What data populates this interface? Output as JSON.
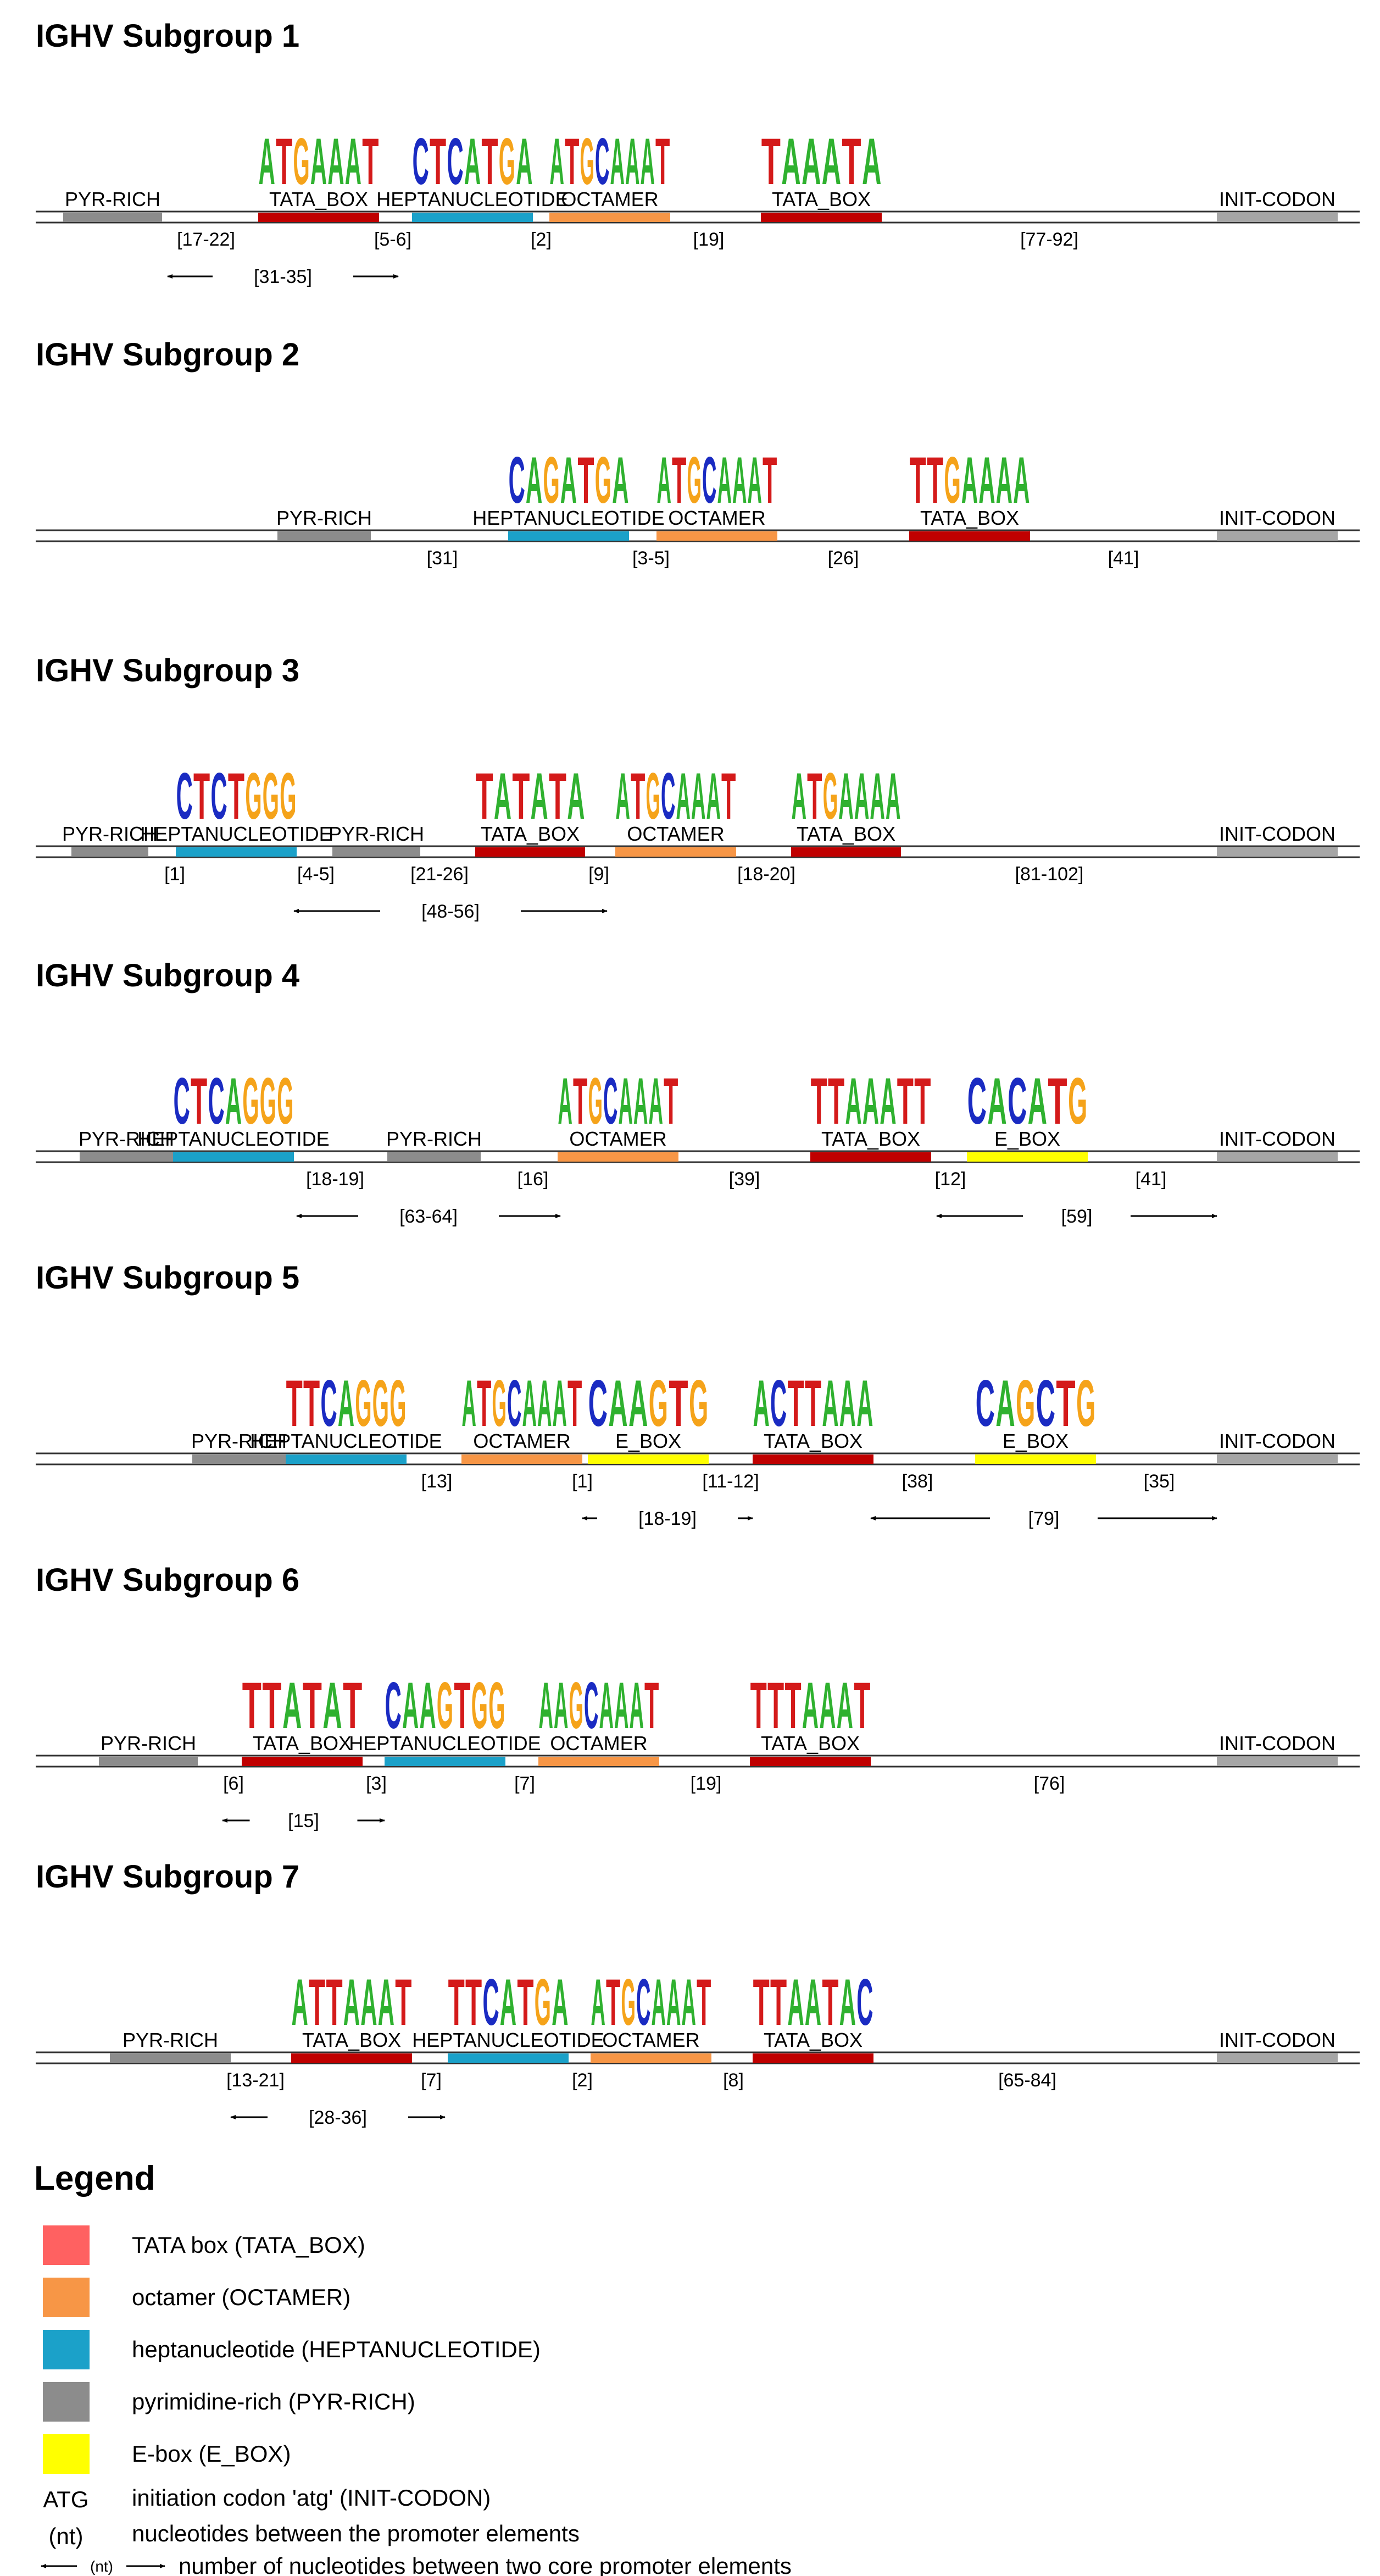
{
  "colors": {
    "TATA_BOX": "#c00000",
    "OCTAMER": "#f79646",
    "HEPTANUCLEOTIDE": "#1ba1c9",
    "PYR_RICH": "#8c8c8c",
    "E_BOX": "#ffff00",
    "INIT_CODON": "#a6a6a6",
    "nucleotide": {
      "A": "#2fb12f",
      "C": "#1a2bc2",
      "G": "#f5a31a",
      "T": "#d41a1a"
    },
    "legend_swatch_tata": "#ff6161",
    "init_codon_text": "#e02020"
  },
  "subgroups": [
    {
      "title": "IGHV Subgroup 1",
      "elements": [
        {
          "type": "PYR-RICH",
          "label": "PYR-RICH",
          "start": 115,
          "end": 295
        },
        {
          "type": "TATA_BOX",
          "label": "TATA_BOX",
          "start": 470,
          "end": 690,
          "logo": "ATGAAAT"
        },
        {
          "type": "HEPTANUCLEOTIDE",
          "label": "HEPTANUCLEOTIDE",
          "start": 750,
          "end": 970,
          "logo": "CTCATGA"
        },
        {
          "type": "OCTAMER",
          "label": "OCTAMER",
          "start": 1000,
          "end": 1220,
          "logo": "ATGCAAAT"
        },
        {
          "type": "TATA_BOX",
          "label": "TATA_BOX",
          "start": 1385,
          "end": 1605,
          "logo": "TAAATA"
        },
        {
          "type": "INIT-CODON",
          "label": "INIT-CODON",
          "start": 2215,
          "end": 2435
        }
      ],
      "gaps": [
        {
          "label": "[17-22]",
          "pos": 375
        },
        {
          "label": "[5-6]",
          "pos": 715
        },
        {
          "label": "[2]",
          "pos": 985
        },
        {
          "label": "[19]",
          "pos": 1290
        },
        {
          "label": "[77-92]",
          "pos": 1910
        }
      ],
      "spans": [
        {
          "label": "[31-35]",
          "from": 305,
          "to": 725
        }
      ]
    },
    {
      "title": "IGHV Subgroup 2",
      "elements": [
        {
          "type": "PYR-RICH",
          "label": "PYR-RICH",
          "start": 505,
          "end": 675
        },
        {
          "type": "HEPTANUCLEOTIDE",
          "label": "HEPTANUCLEOTIDE",
          "start": 925,
          "end": 1145,
          "logo": "CAGATGA"
        },
        {
          "type": "OCTAMER",
          "label": "OCTAMER",
          "start": 1195,
          "end": 1415,
          "logo": "ATGCAAAT"
        },
        {
          "type": "TATA_BOX",
          "label": "TATA_BOX",
          "start": 1655,
          "end": 1875,
          "logo": "TTGAAAA"
        },
        {
          "type": "INIT-CODON",
          "label": "INIT-CODON",
          "start": 2215,
          "end": 2435
        }
      ],
      "gaps": [
        {
          "label": "[31]",
          "pos": 805
        },
        {
          "label": "[3-5]",
          "pos": 1185
        },
        {
          "label": "[26]",
          "pos": 1535
        },
        {
          "label": "[41]",
          "pos": 2045
        }
      ],
      "spans": []
    },
    {
      "title": "IGHV Subgroup 3",
      "elements": [
        {
          "type": "PYR-RICH",
          "label": "PYR-RICH",
          "start": 130,
          "end": 270
        },
        {
          "type": "HEPTANUCLEOTIDE",
          "label": "HEPTANUCLEOTIDE",
          "start": 320,
          "end": 540,
          "logo": "CTCTGGG"
        },
        {
          "type": "PYR-RICH",
          "label": "PYR-RICH",
          "start": 605,
          "end": 765
        },
        {
          "type": "TATA_BOX",
          "label": "TATA_BOX",
          "start": 865,
          "end": 1065,
          "logo": "TATATA"
        },
        {
          "type": "OCTAMER",
          "label": "OCTAMER",
          "start": 1120,
          "end": 1340,
          "logo": "ATGCAAAT"
        },
        {
          "type": "TATA_BOX",
          "label": "TATA_BOX",
          "start": 1440,
          "end": 1640,
          "logo": "ATGAAAA"
        },
        {
          "type": "INIT-CODON",
          "label": "INIT-CODON",
          "start": 2215,
          "end": 2435
        }
      ],
      "gaps": [
        {
          "label": "[1]",
          "pos": 318
        },
        {
          "label": "[4-5]",
          "pos": 575
        },
        {
          "label": "[21-26]",
          "pos": 800
        },
        {
          "label": "[9]",
          "pos": 1090
        },
        {
          "label": "[18-20]",
          "pos": 1395
        },
        {
          "label": "[81-102]",
          "pos": 1910
        }
      ],
      "spans": [
        {
          "label": "[48-56]",
          "from": 535,
          "to": 1105
        }
      ]
    },
    {
      "title": "IGHV Subgroup 4",
      "elements": [
        {
          "type": "PYR-RICH",
          "label": "PYR-RICH",
          "start": 145,
          "end": 315
        },
        {
          "type": "HEPTANUCLEOTIDE",
          "label": "HEPTANUCLEOTIDE",
          "start": 315,
          "end": 535,
          "logo": "CTCAGGG"
        },
        {
          "type": "PYR-RICH",
          "label": "PYR-RICH",
          "start": 705,
          "end": 875
        },
        {
          "type": "OCTAMER",
          "label": "OCTAMER",
          "start": 1015,
          "end": 1235,
          "logo": "ATGCAAAT"
        },
        {
          "type": "TATA_BOX",
          "label": "TATA_BOX",
          "start": 1475,
          "end": 1695,
          "logo": "TTAAATT"
        },
        {
          "type": "E_BOX",
          "label": "E_BOX",
          "start": 1760,
          "end": 1980,
          "logo": "CACATG"
        },
        {
          "type": "INIT-CODON",
          "label": "INIT-CODON",
          "start": 2215,
          "end": 2435
        }
      ],
      "gaps": [
        {
          "label": "[18-19]",
          "pos": 610
        },
        {
          "label": "[16]",
          "pos": 970
        },
        {
          "label": "[39]",
          "pos": 1355
        },
        {
          "label": "[12]",
          "pos": 1730
        },
        {
          "label": "[41]",
          "pos": 2095
        }
      ],
      "spans": [
        {
          "label": "[63-64]",
          "from": 540,
          "to": 1020
        },
        {
          "label": "[59]",
          "from": 1705,
          "to": 2215
        }
      ]
    },
    {
      "title": "IGHV Subgroup 5",
      "elements": [
        {
          "type": "PYR-RICH",
          "label": "PYR-RICH",
          "start": 350,
          "end": 520
        },
        {
          "type": "HEPTANUCLEOTIDE",
          "label": "HEPTANUCLEOTIDE",
          "start": 520,
          "end": 740,
          "logo": "TTCAGGG"
        },
        {
          "type": "OCTAMER",
          "label": "OCTAMER",
          "start": 840,
          "end": 1060,
          "logo": "ATGCAAAT"
        },
        {
          "type": "E_BOX",
          "label": "E_BOX",
          "start": 1070,
          "end": 1290,
          "logo": "CAAGTG"
        },
        {
          "type": "TATA_BOX",
          "label": "TATA_BOX",
          "start": 1370,
          "end": 1590,
          "logo": "ACTTAAA"
        },
        {
          "type": "E_BOX",
          "label": "E_BOX",
          "start": 1775,
          "end": 1995,
          "logo": "CAGCTG"
        },
        {
          "type": "INIT-CODON",
          "label": "INIT-CODON",
          "start": 2215,
          "end": 2435
        }
      ],
      "gaps": [
        {
          "label": "[13]",
          "pos": 795
        },
        {
          "label": "[1]",
          "pos": 1060
        },
        {
          "label": "[11-12]",
          "pos": 1330
        },
        {
          "label": "[38]",
          "pos": 1670
        },
        {
          "label": "[35]",
          "pos": 2110
        }
      ],
      "spans": [
        {
          "label": "[18-19]",
          "from": 1060,
          "to": 1370
        },
        {
          "label": "[79]",
          "from": 1585,
          "to": 2215
        }
      ]
    },
    {
      "title": "IGHV Subgroup 6",
      "elements": [
        {
          "type": "PYR-RICH",
          "label": "PYR-RICH",
          "start": 180,
          "end": 360
        },
        {
          "type": "TATA_BOX",
          "label": "TATA_BOX",
          "start": 440,
          "end": 660,
          "logo": "TTATAT"
        },
        {
          "type": "HEPTANUCLEOTIDE",
          "label": "HEPTANUCLEOTIDE",
          "start": 700,
          "end": 920,
          "logo": "CAAGTGG"
        },
        {
          "type": "OCTAMER",
          "label": "OCTAMER",
          "start": 980,
          "end": 1200,
          "logo": "AAGCAAAT"
        },
        {
          "type": "TATA_BOX",
          "label": "TATA_BOX",
          "start": 1365,
          "end": 1585,
          "logo": "TTTAAAT"
        },
        {
          "type": "INIT-CODON",
          "label": "INIT-CODON",
          "start": 2215,
          "end": 2435
        }
      ],
      "gaps": [
        {
          "label": "[6]",
          "pos": 425
        },
        {
          "label": "[3]",
          "pos": 685
        },
        {
          "label": "[7]",
          "pos": 955
        },
        {
          "label": "[19]",
          "pos": 1285
        },
        {
          "label": "[76]",
          "pos": 1910
        }
      ],
      "spans": [
        {
          "label": "[15]",
          "from": 405,
          "to": 700
        }
      ]
    },
    {
      "title": "IGHV Subgroup 7",
      "elements": [
        {
          "type": "PYR-RICH",
          "label": "PYR-RICH",
          "start": 200,
          "end": 420
        },
        {
          "type": "TATA_BOX",
          "label": "TATA_BOX",
          "start": 530,
          "end": 750,
          "logo": "ATTAAAT"
        },
        {
          "type": "HEPTANUCLEOTIDE",
          "label": "HEPTANUCLEOTIDE",
          "start": 815,
          "end": 1035,
          "logo": "TTCATGA"
        },
        {
          "type": "OCTAMER",
          "label": "OCTAMER",
          "start": 1075,
          "end": 1295,
          "logo": "ATGCAAAT"
        },
        {
          "type": "TATA_BOX",
          "label": "TATA_BOX",
          "start": 1370,
          "end": 1590,
          "logo": "TTAATAC"
        },
        {
          "type": "INIT-CODON",
          "label": "INIT-CODON",
          "start": 2215,
          "end": 2435
        }
      ],
      "gaps": [
        {
          "label": "[13-21]",
          "pos": 465
        },
        {
          "label": "[7]",
          "pos": 785
        },
        {
          "label": "[2]",
          "pos": 1060
        },
        {
          "label": "[8]",
          "pos": 1335
        },
        {
          "label": "[65-84]",
          "pos": 1870
        }
      ],
      "spans": [
        {
          "label": "[28-36]",
          "from": 420,
          "to": 810
        }
      ]
    }
  ],
  "legend": {
    "title": "Legend",
    "items": [
      {
        "swatch": "TATA_BOX",
        "text": "TATA box (TATA_BOX)"
      },
      {
        "swatch": "OCTAMER",
        "text": "octamer (OCTAMER)"
      },
      {
        "swatch": "HEPTANUCLEOTIDE",
        "text": "heptanucleotide (HEPTANUCLEOTIDE)"
      },
      {
        "swatch": "PYR_RICH",
        "text": "pyrimidine-rich (PYR-RICH)"
      },
      {
        "swatch": "E_BOX",
        "text": "E-box (E_BOX)"
      }
    ],
    "init_codon": {
      "symbol": "ATG",
      "text": "initiation codon 'atg' (INIT-CODON)"
    },
    "nt": {
      "symbol": "(nt)",
      "text": "nucleotides between the promoter elements"
    },
    "span": {
      "symbol": "(nt)",
      "text": "number of nucleotides between two core promoter elements"
    }
  }
}
